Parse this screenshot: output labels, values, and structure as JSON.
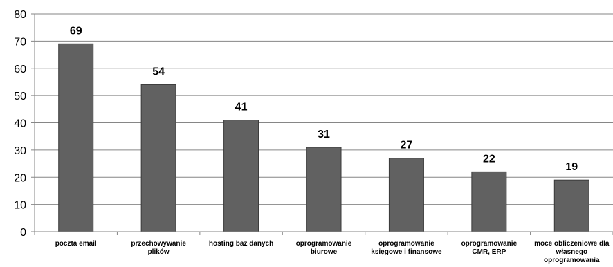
{
  "chart_data": {
    "type": "bar",
    "categories": [
      [
        "poczta email"
      ],
      [
        "przechowywanie",
        "plików"
      ],
      [
        "hosting baz danych"
      ],
      [
        "oprogramowanie",
        "biurowe"
      ],
      [
        "oprogramowanie",
        "księgowe i finansowe"
      ],
      [
        "oprogramowanie",
        "CMR, ERP"
      ],
      [
        "moce obliczeniowe dla",
        "własnego",
        "oprogramowania"
      ]
    ],
    "values": [
      69,
      54,
      41,
      31,
      27,
      22,
      19
    ],
    "data_labels": [
      "69",
      "54",
      "41",
      "31",
      "27",
      "22",
      "19"
    ],
    "title": "",
    "xlabel": "",
    "ylabel": "",
    "ylim": [
      0,
      80
    ],
    "yticks": [
      "0",
      "10",
      "20",
      "30",
      "40",
      "50",
      "60",
      "70",
      "80"
    ],
    "grid": true,
    "bar_color": "#616161",
    "bar_edge_color": "#3a3a3a",
    "grid_color": "#868686"
  }
}
